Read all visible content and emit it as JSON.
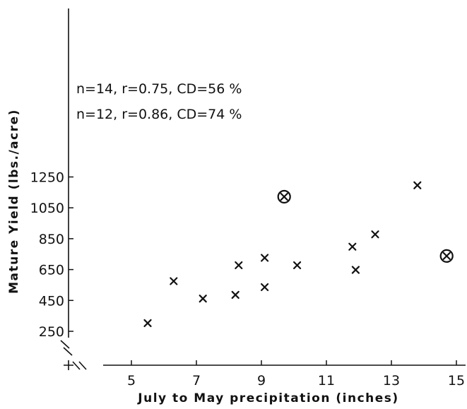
{
  "chart_data": {
    "type": "scatter",
    "title": "",
    "xlabel": "July to May precipitation (inches)",
    "ylabel": "Mature Yield (lbs./acre)",
    "xlim": [
      3.7,
      15
    ],
    "ylim": [
      250,
      1250
    ],
    "x_ticks": [
      5,
      7,
      9,
      11,
      13,
      15
    ],
    "y_ticks": [
      250,
      450,
      650,
      850,
      1050,
      1250
    ],
    "grid": false,
    "annotations": [
      "n=14, r=0.75, CD=56 %",
      "n=12, r=0.86, CD=74 %"
    ],
    "series": [
      {
        "marker": "x",
        "points": [
          {
            "x": 5.5,
            "y": 303
          },
          {
            "x": 6.3,
            "y": 575
          },
          {
            "x": 7.2,
            "y": 462
          },
          {
            "x": 8.2,
            "y": 486
          },
          {
            "x": 8.3,
            "y": 678
          },
          {
            "x": 9.1,
            "y": 536
          },
          {
            "x": 9.1,
            "y": 726
          },
          {
            "x": 10.1,
            "y": 678
          },
          {
            "x": 11.8,
            "y": 798
          },
          {
            "x": 11.9,
            "y": 648
          },
          {
            "x": 12.5,
            "y": 878
          },
          {
            "x": 13.8,
            "y": 1196
          }
        ]
      },
      {
        "marker": "circled-x",
        "points": [
          {
            "x": 9.7,
            "y": 1122
          },
          {
            "x": 14.7,
            "y": 738
          }
        ]
      }
    ]
  }
}
